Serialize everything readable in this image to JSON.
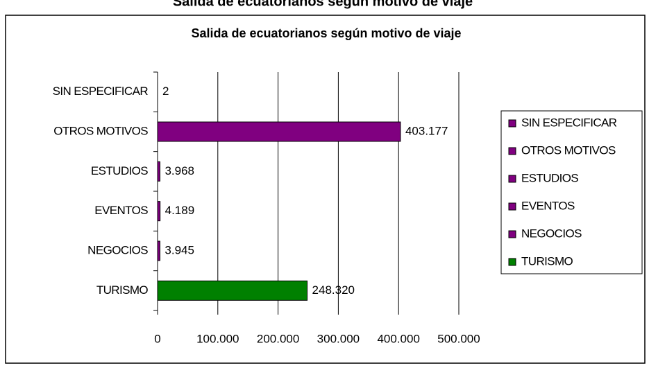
{
  "heading": "Salida de ecuatorianos según motivo de viaje",
  "chart_data": {
    "type": "hbar",
    "title": "Salida de ecuatorianos según motivo de viaje",
    "categories": [
      "SIN ESPECIFICAR",
      "OTROS MOTIVOS",
      "ESTUDIOS",
      "EVENTOS",
      "NEGOCIOS",
      "TURISMO"
    ],
    "values": [
      2,
      403177,
      3968,
      4189,
      3945,
      248320
    ],
    "value_labels": [
      "2",
      "403.177",
      "3.968",
      "4.189",
      "3.945",
      "248.320"
    ],
    "colors": [
      "#800080",
      "#800080",
      "#800080",
      "#800080",
      "#800080",
      "#008000"
    ],
    "xlim": [
      0,
      500000
    ],
    "xticks": [
      0,
      {
        "value": 100000,
        "label": "100.000"
      },
      {
        "value": 200000,
        "label": "200.000"
      },
      {
        "value": 300000,
        "label": "300.000"
      },
      {
        "value": 400000,
        "label": "400.000"
      },
      {
        "value": 500000,
        "label": "500.000"
      }
    ],
    "grid": true,
    "legend": "right"
  }
}
